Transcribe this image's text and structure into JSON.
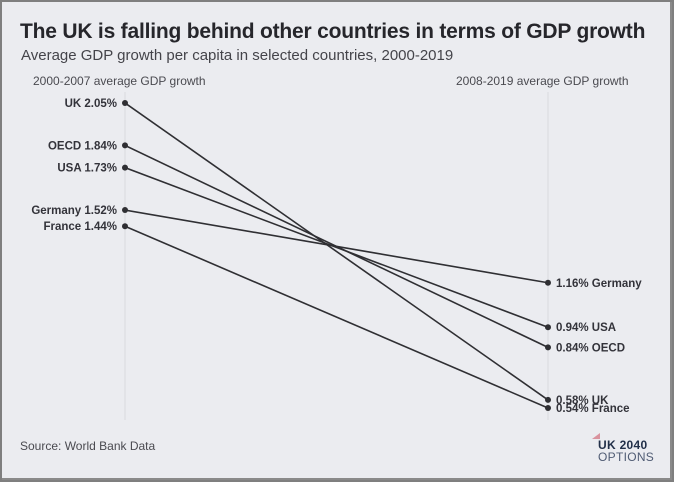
{
  "title": "The UK is falling behind other countries in terms of GDP growth",
  "subtitle": "Average GDP growth per capita in selected countries, 2000-2019",
  "source": "Source: World Bank Data",
  "logo": {
    "line1": "UK 2040",
    "line2": "OPTIONS"
  },
  "colors": {
    "background": "#ebecf0",
    "line": "#2f2f33",
    "dot": "#2f2f33",
    "text": "#33333a"
  },
  "chart_data": {
    "type": "slope",
    "title": "The UK is falling behind other countries in terms of GDP growth",
    "subtitle": "Average GDP growth per capita in selected countries, 2000-2019",
    "left_label": "2000-2007 average GDP growth",
    "right_label": "2008-2019 average GDP growth",
    "unit": "%",
    "series": [
      {
        "name": "UK",
        "start": 2.05,
        "end": 0.58
      },
      {
        "name": "OECD",
        "start": 1.84,
        "end": 0.84
      },
      {
        "name": "USA",
        "start": 1.73,
        "end": 0.94
      },
      {
        "name": "Germany",
        "start": 1.52,
        "end": 1.16
      },
      {
        "name": "France",
        "start": 1.44,
        "end": 0.54
      }
    ],
    "source": "Source: World Bank Data"
  }
}
